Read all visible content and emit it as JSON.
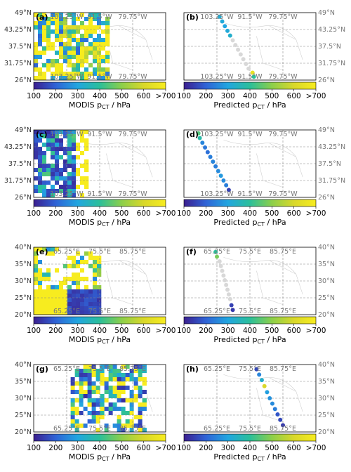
{
  "chart_data": {
    "type": "scatter",
    "colormap": {
      "min": 100,
      "max": 700,
      "ticks": [
        "100",
        "200",
        "300",
        "400",
        "500",
        "600",
        ">700"
      ],
      "stops": [
        "#3b1f8f",
        "#2f63d6",
        "#21a6e0",
        "#2bbf9a",
        "#8ccf4a",
        "#d9d82a",
        "#f7ec1f"
      ],
      "modis_label": "MODIS p",
      "pred_label": "Predicted p",
      "sub": "CT",
      "unit": " / hPa"
    },
    "rows": [
      {
        "lon_ticks": [
          "103.25°W",
          "91.5°W",
          "79.75°W"
        ],
        "lat_ticks": [
          "49°N",
          "43.25°N",
          "37.5°N",
          "31.75°N",
          "26°N"
        ],
        "panels": [
          {
            "label": "(a)",
            "kind": "modis",
            "swath": "left-wide"
          },
          {
            "label": "(b)",
            "kind": "pred",
            "track": [
              {
                "x": 0.27,
                "y": 0.06,
                "v": 320
              },
              {
                "x": 0.29,
                "y": 0.13,
                "v": 310
              },
              {
                "x": 0.31,
                "y": 0.2,
                "v": 300
              },
              {
                "x": 0.33,
                "y": 0.27,
                "v": 310
              },
              {
                "x": 0.35,
                "y": 0.34,
                "v": 330
              },
              {
                "x": 0.37,
                "y": 0.41,
                "v": null
              },
              {
                "x": 0.39,
                "y": 0.48,
                "v": null
              },
              {
                "x": 0.41,
                "y": 0.55,
                "v": null
              },
              {
                "x": 0.43,
                "y": 0.62,
                "v": null
              },
              {
                "x": 0.45,
                "y": 0.69,
                "v": null
              },
              {
                "x": 0.47,
                "y": 0.76,
                "v": null
              },
              {
                "x": 0.49,
                "y": 0.83,
                "v": null
              },
              {
                "x": 0.52,
                "y": 0.89,
                "v": 650
              },
              {
                "x": 0.53,
                "y": 0.95,
                "v": 400
              }
            ]
          }
        ]
      },
      {
        "lon_ticks": [
          "103.25°W",
          "91.5°W",
          "79.75°W"
        ],
        "lat_ticks": [
          "49°N",
          "43.25°N",
          "37.5°N",
          "31.75°N",
          "26°N"
        ],
        "panels": [
          {
            "label": "(c)",
            "kind": "modis",
            "swath": "left-narrow"
          },
          {
            "label": "(d)",
            "kind": "pred",
            "track": [
              {
                "x": 0.11,
                "y": 0.05,
                "v": 440
              },
              {
                "x": 0.12,
                "y": 0.12,
                "v": 380
              },
              {
                "x": 0.14,
                "y": 0.19,
                "v": 250
              },
              {
                "x": 0.16,
                "y": 0.26,
                "v": 230
              },
              {
                "x": 0.18,
                "y": 0.33,
                "v": 220
              },
              {
                "x": 0.2,
                "y": 0.4,
                "v": 240
              },
              {
                "x": 0.22,
                "y": 0.47,
                "v": 250
              },
              {
                "x": 0.24,
                "y": 0.54,
                "v": 240
              },
              {
                "x": 0.26,
                "y": 0.61,
                "v": 260
              },
              {
                "x": 0.28,
                "y": 0.68,
                "v": 280
              },
              {
                "x": 0.3,
                "y": 0.75,
                "v": 260
              },
              {
                "x": 0.32,
                "y": 0.82,
                "v": 240
              },
              {
                "x": 0.34,
                "y": 0.89,
                "v": 150
              }
            ]
          }
        ]
      },
      {
        "lon_ticks": [
          "65.25°E",
          "75.5°E",
          "85.75°E"
        ],
        "lat_ticks": [
          "40°N",
          "35°N",
          "30°N",
          "25°N",
          "20°N"
        ],
        "panels": [
          {
            "label": "(e)",
            "kind": "modis",
            "swath": "left-mid"
          },
          {
            "label": "(f)",
            "kind": "pred",
            "track": [
              {
                "x": 0.24,
                "y": 0.07,
                "v": 400
              },
              {
                "x": 0.25,
                "y": 0.14,
                "v": 480
              },
              {
                "x": 0.27,
                "y": 0.21,
                "v": null
              },
              {
                "x": 0.28,
                "y": 0.28,
                "v": null
              },
              {
                "x": 0.29,
                "y": 0.35,
                "v": null
              },
              {
                "x": 0.3,
                "y": 0.42,
                "v": null
              },
              {
                "x": 0.31,
                "y": 0.49,
                "v": null
              },
              {
                "x": 0.32,
                "y": 0.56,
                "v": null
              },
              {
                "x": 0.33,
                "y": 0.63,
                "v": null
              },
              {
                "x": 0.34,
                "y": 0.7,
                "v": null
              },
              {
                "x": 0.35,
                "y": 0.77,
                "v": null
              },
              {
                "x": 0.36,
                "y": 0.86,
                "v": 150
              },
              {
                "x": 0.37,
                "y": 0.93,
                "v": 140
              }
            ]
          }
        ]
      },
      {
        "lon_ticks": [
          "65.25°E",
          "75.5°E",
          "85.75°E"
        ],
        "lat_ticks": [
          "40°N",
          "35°N",
          "30°N",
          "25°N",
          "20°N"
        ],
        "panels": [
          {
            "label": "(g)",
            "kind": "modis",
            "swath": "right-mid"
          },
          {
            "label": "(h)",
            "kind": "pred",
            "track": [
              {
                "x": 0.55,
                "y": 0.07,
                "v": 160
              },
              {
                "x": 0.57,
                "y": 0.15,
                "v": 250
              },
              {
                "x": 0.59,
                "y": 0.23,
                "v": 330
              },
              {
                "x": 0.61,
                "y": 0.32,
                "v": 600
              },
              {
                "x": 0.63,
                "y": 0.41,
                "v": 290
              },
              {
                "x": 0.65,
                "y": 0.5,
                "v": 270
              },
              {
                "x": 0.67,
                "y": 0.58,
                "v": 260
              },
              {
                "x": 0.69,
                "y": 0.66,
                "v": 240
              },
              {
                "x": 0.71,
                "y": 0.74,
                "v": 180
              },
              {
                "x": 0.73,
                "y": 0.82,
                "v": 160
              },
              {
                "x": 0.75,
                "y": 0.9,
                "v": 140
              }
            ]
          }
        ]
      }
    ]
  }
}
